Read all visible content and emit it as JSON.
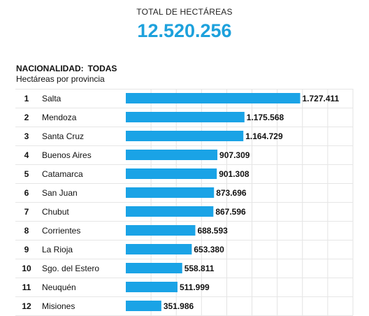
{
  "header": {
    "total_label": "TOTAL DE HECTÁREAS",
    "total_value": "12.520.256"
  },
  "section": {
    "filter_label": "NACIONALIDAD:",
    "filter_value": "TODAS",
    "subtitle": "Hectáreas por provincia"
  },
  "colors": {
    "accent": "#1da1dc",
    "bar": "#1aa3e6",
    "grid": "#e3e3e3",
    "row_divider": "#e6e6e6"
  },
  "chart_data": {
    "type": "bar",
    "orientation": "horizontal",
    "title": "Hectáreas por provincia",
    "ranks": [
      "1",
      "2",
      "3",
      "4",
      "5",
      "6",
      "7",
      "8",
      "9",
      "10",
      "11",
      "12"
    ],
    "categories": [
      "Salta",
      "Mendoza",
      "Santa Cruz",
      "Buenos Aires",
      "Catamarca",
      "San Juan",
      "Chubut",
      "Corrientes",
      "La Rioja",
      "Sgo. del Estero",
      "Neuquén",
      "Misiones"
    ],
    "values": [
      1727411,
      1175568,
      1164729,
      907309,
      901308,
      873696,
      867596,
      688593,
      653380,
      558811,
      511999,
      351986
    ],
    "value_labels": [
      "1.727.411",
      "1.175.568",
      "1.164.729",
      "907.309",
      "901.308",
      "873.696",
      "867.596",
      "688.593",
      "653.380",
      "558.811",
      "511.999",
      "351.986"
    ],
    "xlim": [
      0,
      2250000
    ],
    "grid": true,
    "legend": "none"
  }
}
